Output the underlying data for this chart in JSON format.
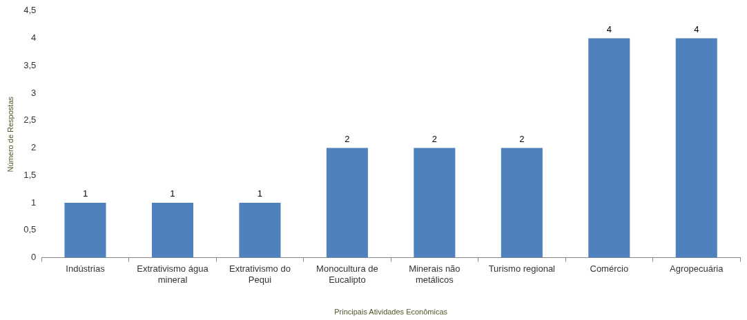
{
  "chart_data": {
    "type": "bar",
    "xlabel": "Principais Atividades Econômicas",
    "ylabel": "Número de Respostas",
    "categories": [
      "Indústrias",
      "Extrativismo água mineral",
      "Extrativismo do Pequi",
      "Monocultura de Eucalipto",
      "Minerais não metálicos",
      "Turismo regional",
      "Comércio",
      "Agropecuária"
    ],
    "values": [
      1,
      1,
      1,
      2,
      2,
      2,
      4,
      4
    ],
    "color": "#4f81bd",
    "ylim": [
      0,
      4.5
    ],
    "yticks": [
      {
        "value": 0,
        "label": "0"
      },
      {
        "value": 0.5,
        "label": "0,5"
      },
      {
        "value": 1,
        "label": "1"
      },
      {
        "value": 1.5,
        "label": "1,5"
      },
      {
        "value": 2,
        "label": "2"
      },
      {
        "value": 2.5,
        "label": "2,5"
      },
      {
        "value": 3,
        "label": "3"
      },
      {
        "value": 3.5,
        "label": "3,5"
      },
      {
        "value": 4,
        "label": "4"
      },
      {
        "value": 4.5,
        "label": "4,5"
      }
    ],
    "grid": false,
    "legend": false,
    "data_labels": true
  }
}
